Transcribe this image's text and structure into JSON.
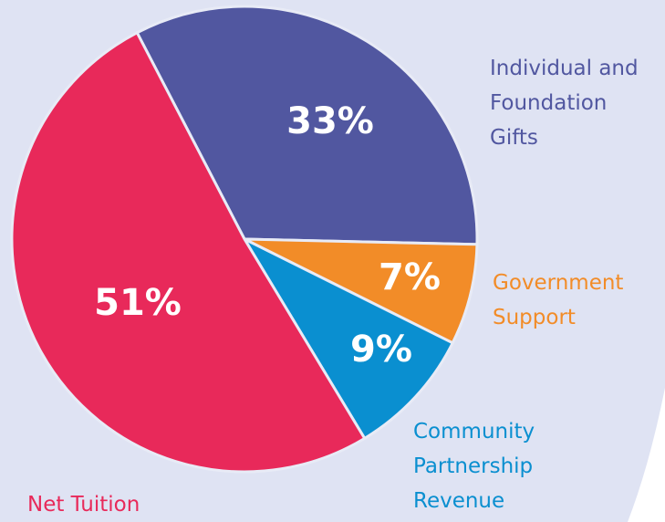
{
  "chart_data": {
    "type": "pie",
    "categories": [
      "Individual and Foundation Gifts",
      "Government Support",
      "Community Partnership Revenue",
      "Net Tuition"
    ],
    "values": [
      33,
      7,
      9,
      51
    ],
    "value_labels": [
      "33%",
      "7%",
      "9%",
      "51%"
    ],
    "colors": [
      "#5157a0",
      "#f28c28",
      "#0a8fd0",
      "#e8295a"
    ]
  }
}
